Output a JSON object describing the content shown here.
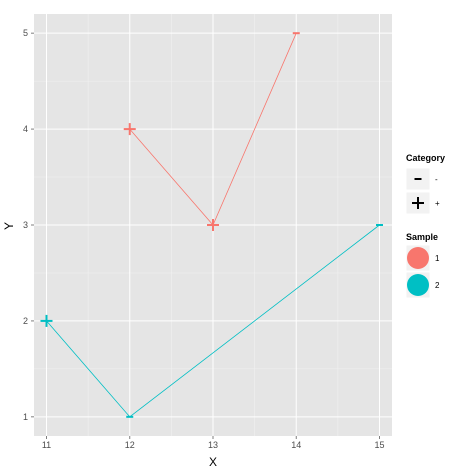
{
  "chart_data": {
    "type": "line",
    "title": "",
    "xlabel": "X",
    "ylabel": "Y",
    "xlim": [
      10.85,
      15.15
    ],
    "ylim": [
      0.8,
      5.2
    ],
    "x_ticks": [
      11,
      12,
      13,
      14,
      15
    ],
    "y_ticks": [
      1,
      2,
      3,
      4,
      5
    ],
    "grid": true,
    "legend_position": "right",
    "colors": {
      "1": "#F8766D",
      "2": "#00BFC4"
    },
    "series": [
      {
        "name": "1",
        "color": "#F8766D",
        "points": [
          {
            "x": 12,
            "y": 4,
            "category": "+"
          },
          {
            "x": 13,
            "y": 3,
            "category": "+"
          },
          {
            "x": 14,
            "y": 5,
            "category": "-"
          }
        ]
      },
      {
        "name": "2",
        "color": "#00BFC4",
        "points": [
          {
            "x": 11,
            "y": 2,
            "category": "+"
          },
          {
            "x": 12,
            "y": 1,
            "category": "-"
          },
          {
            "x": 15,
            "y": 3,
            "category": "-"
          }
        ]
      }
    ]
  },
  "legends": {
    "category": {
      "title": "Category",
      "items": [
        {
          "shape": "-",
          "label": "-"
        },
        {
          "shape": "+",
          "label": "+"
        }
      ]
    },
    "sample": {
      "title": "Sample",
      "items": [
        {
          "label": "1",
          "color": "#F8766D"
        },
        {
          "label": "2",
          "color": "#00BFC4"
        }
      ]
    }
  }
}
